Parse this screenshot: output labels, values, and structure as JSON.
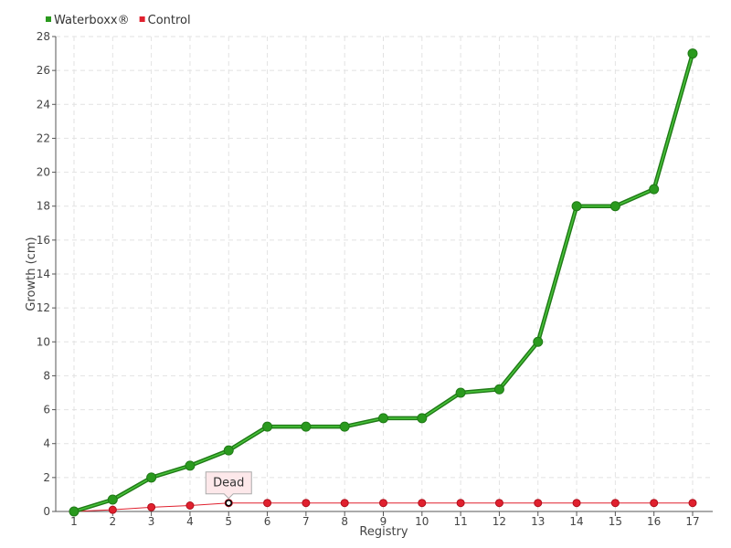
{
  "chart_data": {
    "type": "line",
    "title": "",
    "xlabel": "Registry",
    "ylabel": "Growth (cm)",
    "categories": [
      "1",
      "2",
      "3",
      "4",
      "5",
      "6",
      "7",
      "8",
      "9",
      "10",
      "11",
      "12",
      "13",
      "14",
      "15",
      "16",
      "17"
    ],
    "ylim": [
      0,
      28
    ],
    "yticks": [
      0,
      2,
      4,
      6,
      8,
      10,
      12,
      14,
      16,
      18,
      20,
      22,
      24,
      26,
      28
    ],
    "grid": true,
    "legend_position": "top-left",
    "series": [
      {
        "name": "Waterboxx®",
        "color": "#2a9a1e",
        "values": [
          0,
          0.7,
          2,
          2.7,
          3.6,
          5,
          5,
          5,
          5.5,
          5.5,
          7,
          7.2,
          10,
          18,
          18,
          19,
          27
        ]
      },
      {
        "name": "Control",
        "color": "#e0202e",
        "values": [
          0,
          0.1,
          0.25,
          0.35,
          0.5,
          0.5,
          0.5,
          0.5,
          0.5,
          0.5,
          0.5,
          0.5,
          0.5,
          0.5,
          0.5,
          0.5,
          0.5
        ]
      }
    ],
    "annotations": [
      {
        "text": "Dead",
        "series": "Control",
        "x": "5",
        "y": 0.5
      }
    ]
  }
}
